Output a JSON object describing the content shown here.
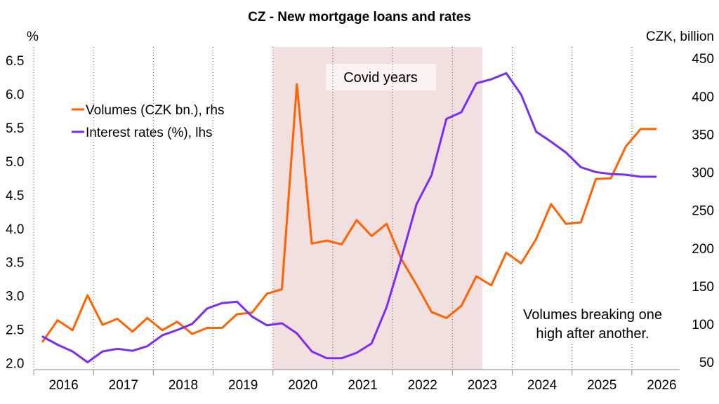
{
  "chart_data": {
    "type": "line",
    "title": "CZ - New mortgage loans and rates",
    "left_unit": "%",
    "right_unit": "CZK, billion",
    "x_tick_labels": [
      "2016",
      "2017",
      "2018",
      "2019",
      "2020",
      "2021",
      "2022",
      "2023",
      "2024",
      "2025",
      "2026"
    ],
    "x_range": [
      2015.5,
      2026.3
    ],
    "y_left": {
      "min": 1.9,
      "max": 6.7,
      "ticks": [
        "2.0",
        "2.5",
        "3.0",
        "3.5",
        "4.0",
        "4.5",
        "5.0",
        "5.5",
        "6.0",
        "6.5"
      ]
    },
    "y_right": {
      "min": 40,
      "max": 465,
      "ticks": [
        "50",
        "100",
        "150",
        "200",
        "250",
        "300",
        "350",
        "400",
        "450"
      ]
    },
    "grid": {
      "vertical_dotted": true,
      "horizontal": false
    },
    "shaded_region": {
      "label": "Covid years",
      "x_start": 2019.5,
      "x_end": 2023.0,
      "color": "#f2dfdf"
    },
    "legend_position": "upper-left",
    "series": [
      {
        "name": "Volumes (CZK bn.), rhs",
        "axis": "right",
        "color": "#ff6200",
        "x": [
          2015.65,
          2015.9,
          2016.15,
          2016.4,
          2016.65,
          2016.9,
          2017.15,
          2017.4,
          2017.65,
          2017.9,
          2018.15,
          2018.4,
          2018.65,
          2018.9,
          2019.15,
          2019.4,
          2019.65,
          2019.9,
          2020.15,
          2020.4,
          2020.65,
          2020.9,
          2021.15,
          2021.4,
          2021.65,
          2021.9,
          2022.15,
          2022.4,
          2022.65,
          2022.9,
          2023.15,
          2023.4,
          2023.65,
          2023.9,
          2024.15,
          2024.4,
          2024.65,
          2024.9,
          2025.15,
          2025.4,
          2025.65,
          2025.9
        ],
        "values": [
          77,
          105,
          92,
          138,
          99,
          107,
          90,
          108,
          92,
          103,
          87,
          95,
          95,
          113,
          115,
          140,
          146,
          416,
          206,
          210,
          205,
          237,
          216,
          232,
          185,
          152,
          116,
          108,
          124,
          163,
          151,
          194,
          180,
          212,
          258,
          232,
          234,
          291,
          292,
          334,
          357,
          357
        ],
        "values_note": ""
      },
      {
        "name": "Interest rates (%), lhs",
        "axis": "left",
        "color": "#7b2df5",
        "x": [
          2015.65,
          2015.9,
          2016.15,
          2016.4,
          2016.65,
          2016.9,
          2017.15,
          2017.4,
          2017.65,
          2017.9,
          2018.15,
          2018.4,
          2018.65,
          2018.9,
          2019.15,
          2019.4,
          2019.65,
          2019.9,
          2020.15,
          2020.4,
          2020.65,
          2020.9,
          2021.15,
          2021.4,
          2021.65,
          2021.9,
          2022.15,
          2022.4,
          2022.65,
          2022.9,
          2023.15,
          2023.4,
          2023.65,
          2023.9,
          2024.15,
          2024.4,
          2024.65,
          2024.9,
          2025.15,
          2025.4,
          2025.65,
          2025.9
        ],
        "values": [
          2.39,
          2.27,
          2.17,
          2.01,
          2.17,
          2.21,
          2.18,
          2.25,
          2.41,
          2.49,
          2.58,
          2.81,
          2.89,
          2.91,
          2.69,
          2.56,
          2.59,
          2.44,
          2.17,
          2.07,
          2.07,
          2.15,
          2.29,
          2.83,
          3.57,
          4.36,
          4.79,
          5.63,
          5.73,
          6.16,
          6.22,
          6.31,
          5.99,
          5.44,
          5.29,
          5.13,
          4.91,
          4.84,
          4.81,
          4.8,
          4.77,
          4.77
        ]
      }
    ],
    "annotation": {
      "lines": [
        "Volumes breaking one",
        "high after another."
      ]
    }
  }
}
